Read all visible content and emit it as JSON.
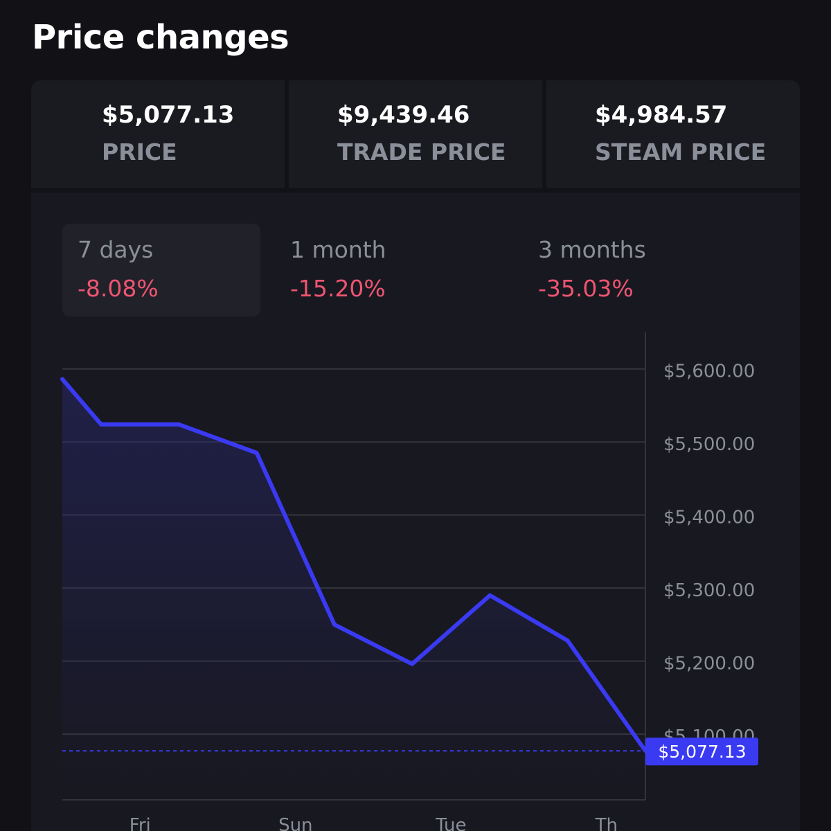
{
  "title": "Price changes",
  "stats": [
    {
      "value": "$5,077.13",
      "label": "PRICE"
    },
    {
      "value": "$9,439.46",
      "label": "TRADE PRICE"
    },
    {
      "value": "$4,984.57",
      "label": "STEAM PRICE"
    }
  ],
  "periods": [
    {
      "label": "7 days",
      "change": "-8.08%",
      "active": true
    },
    {
      "label": "1 month",
      "change": "-15.20%",
      "active": false
    },
    {
      "label": "3 months",
      "change": "-35.03%",
      "active": false
    }
  ],
  "colors": {
    "line": "#3a3af2",
    "negative": "#ee5570",
    "grid": "#34343d",
    "axis_text": "#8a8f99",
    "current_badge": "#3a3af2"
  },
  "chart_data": {
    "type": "line",
    "title": "",
    "xlabel": "",
    "ylabel": "",
    "x_tick_labels": [
      "Fri",
      "Sun",
      "Tue",
      "Th"
    ],
    "y_tick_labels": [
      "$5,600.00",
      "$5,500.00",
      "$5,400.00",
      "$5,300.00",
      "$5,200.00",
      "$5,100.00"
    ],
    "y_ticks": [
      5600,
      5500,
      5400,
      5300,
      5200,
      5100
    ],
    "ylim": [
      5010,
      5650
    ],
    "x_range": [
      0,
      7.5
    ],
    "x_tick_positions": [
      1,
      3,
      5,
      7
    ],
    "series": [
      {
        "name": "Price",
        "x": [
          0,
          0.5,
          1.5,
          2.5,
          3.5,
          4.5,
          5.5,
          6.5,
          7.5
        ],
        "y": [
          5586,
          5524,
          5524,
          5485,
          5250,
          5196,
          5290,
          5228,
          5077.13
        ]
      }
    ],
    "current_value": 5077.13,
    "current_label": "$5,077.13"
  }
}
